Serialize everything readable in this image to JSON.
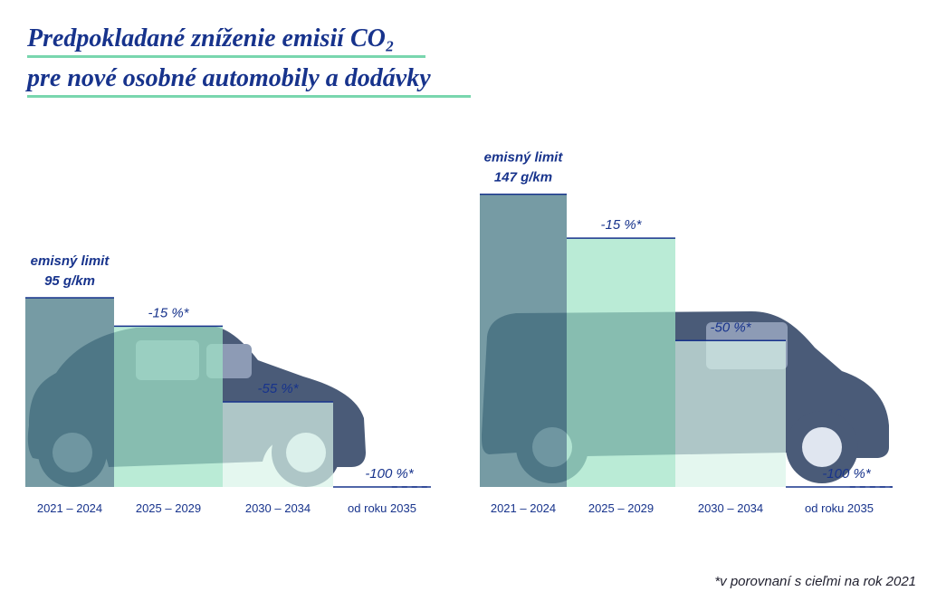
{
  "title": {
    "line1": "Predpokladané zníženie emisií CO₂",
    "line2": "pre nové osobné automobily a dodávky"
  },
  "footnote": "*v porovnaní s cieľmi na rok 2021",
  "colors": {
    "title": "#17338c",
    "accent_line": "#79d6ae",
    "bar_dark": "#4f7f8a",
    "bar_light": "#9fe3c6",
    "bar_lighter": "#d9f3e8",
    "vehicle": "#4a5b78"
  },
  "chart_data": [
    {
      "type": "bar",
      "vehicle": "car",
      "categories": [
        "2021 – 2024",
        "2025 – 2029",
        "2030 – 2034",
        "od roku 2035"
      ],
      "values": [
        95,
        80.75,
        42.75,
        0
      ],
      "unit": "g/km",
      "limit_label": [
        "emisný limit",
        "95 g/km"
      ],
      "data_labels": [
        "",
        "-15 %*",
        "-55 %*",
        "-100 %*"
      ],
      "ylim": [
        0,
        160
      ]
    },
    {
      "type": "bar",
      "vehicle": "van",
      "categories": [
        "2021 – 2024",
        "2025 – 2029",
        "2030 – 2034",
        "od roku 2035"
      ],
      "values": [
        147,
        124.95,
        73.5,
        0
      ],
      "unit": "g/km",
      "limit_label": [
        "emisný limit",
        "147 g/km"
      ],
      "data_labels": [
        "",
        "-15 %*",
        "-50 %*",
        "-100 %*"
      ],
      "ylim": [
        0,
        160
      ]
    }
  ]
}
